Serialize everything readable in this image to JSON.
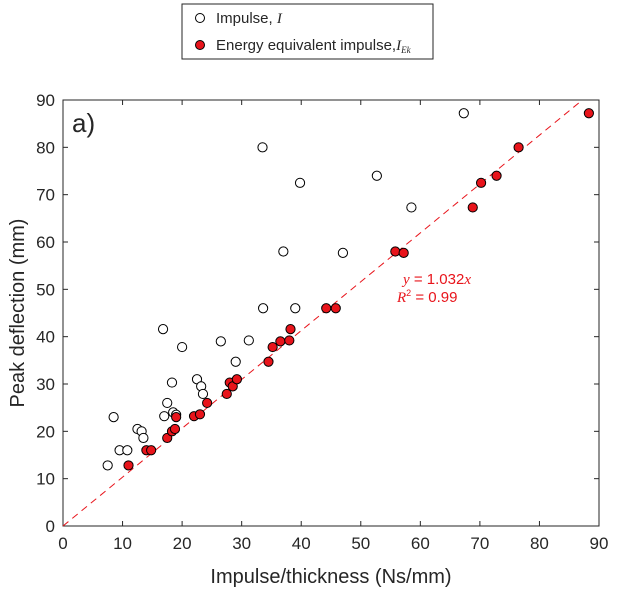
{
  "chart_data": {
    "type": "scatter",
    "panel_label": "a)",
    "xlabel": "Impulse/thickness (Ns/mm)",
    "ylabel": "Peak deflection (mm)",
    "xlim": [
      0,
      90
    ],
    "ylim": [
      0,
      90
    ],
    "xticks": [
      0,
      10,
      20,
      30,
      40,
      50,
      60,
      70,
      80,
      90
    ],
    "yticks": [
      0,
      10,
      20,
      30,
      40,
      50,
      60,
      70,
      80,
      90
    ],
    "grid": false,
    "legend_position": "top-center-outside",
    "series": [
      {
        "name": "Impulse, ",
        "name_symbol": "I",
        "marker": "open-circle",
        "color": "#000000",
        "points": [
          [
            7.5,
            12.8
          ],
          [
            8.5,
            23.0
          ],
          [
            9.5,
            16.0
          ],
          [
            10.8,
            16.0
          ],
          [
            12.5,
            20.5
          ],
          [
            13.2,
            20.0
          ],
          [
            13.5,
            18.6
          ],
          [
            16.8,
            41.6
          ],
          [
            17.0,
            23.2
          ],
          [
            17.5,
            26.0
          ],
          [
            18.3,
            30.3
          ],
          [
            18.5,
            24.0
          ],
          [
            19.0,
            23.5
          ],
          [
            20.0,
            37.8
          ],
          [
            22.5,
            31.0
          ],
          [
            23.2,
            29.5
          ],
          [
            23.5,
            27.9
          ],
          [
            26.5,
            39.0
          ],
          [
            29.0,
            34.7
          ],
          [
            31.2,
            39.2
          ],
          [
            33.5,
            80.0
          ],
          [
            33.6,
            46.0
          ],
          [
            37.0,
            58.0
          ],
          [
            39.0,
            46.0
          ],
          [
            39.8,
            72.5
          ],
          [
            47.0,
            57.7
          ],
          [
            52.7,
            74.0
          ],
          [
            58.5,
            67.3
          ],
          [
            67.3,
            87.2
          ]
        ]
      },
      {
        "name": "Energy equivalent impulse,",
        "name_symbol": "I",
        "name_subscript": "Ek",
        "marker": "filled-circle",
        "color": "#e8141b",
        "points": [
          [
            11.0,
            12.8
          ],
          [
            14.0,
            16.0
          ],
          [
            14.8,
            16.0
          ],
          [
            17.5,
            18.6
          ],
          [
            18.3,
            20.0
          ],
          [
            18.8,
            20.5
          ],
          [
            19.0,
            23.0
          ],
          [
            22.0,
            23.2
          ],
          [
            23.0,
            23.6
          ],
          [
            24.2,
            26.0
          ],
          [
            27.5,
            27.9
          ],
          [
            28.0,
            30.3
          ],
          [
            28.5,
            29.5
          ],
          [
            29.2,
            31.0
          ],
          [
            34.5,
            34.7
          ],
          [
            35.2,
            37.8
          ],
          [
            36.5,
            39.0
          ],
          [
            38.0,
            39.2
          ],
          [
            38.2,
            41.6
          ],
          [
            44.2,
            46.0
          ],
          [
            45.8,
            46.0
          ],
          [
            55.8,
            58.0
          ],
          [
            57.2,
            57.7
          ],
          [
            68.8,
            67.3
          ],
          [
            70.2,
            72.5
          ],
          [
            72.8,
            74.0
          ],
          [
            76.5,
            80.0
          ],
          [
            88.3,
            87.2
          ]
        ]
      }
    ],
    "fit_line": {
      "slope": 1.032,
      "color": "#e8141b",
      "style": "dashed",
      "equation_lhs": "y",
      "equation_value": " = 1.032",
      "equation_var": "x",
      "r2_symbol": "R",
      "r2_sup": "2",
      "r2_value": " = 0.99"
    }
  }
}
